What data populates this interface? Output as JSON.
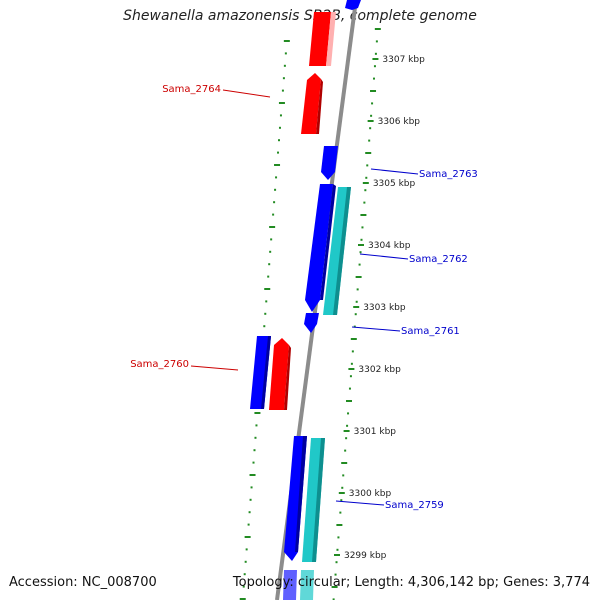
{
  "title": "Shewanella amazonensis SB2B, complete genome",
  "footer": {
    "accession": "Accession: NC_008700",
    "summary": "Topology: circular; Length: 4,306,142 bp; Genes: 3,774"
  },
  "scale_ticks": [
    {
      "label": "3307 kbp",
      "kbp": 3307
    },
    {
      "label": "3306 kbp",
      "kbp": 3306
    },
    {
      "label": "3305 kbp",
      "kbp": 3305
    },
    {
      "label": "3304 kbp",
      "kbp": 3304
    },
    {
      "label": "3303 kbp",
      "kbp": 3303
    },
    {
      "label": "3302 kbp",
      "kbp": 3302
    },
    {
      "label": "3301 kbp",
      "kbp": 3301
    },
    {
      "label": "3300 kbp",
      "kbp": 3300
    },
    {
      "label": "3299 kbp",
      "kbp": 3299
    }
  ],
  "gene_labels": [
    {
      "name": "Sama_2764",
      "side": "left",
      "color": "#cc0000"
    },
    {
      "name": "Sama_2763",
      "side": "right",
      "color": "#0000cc"
    },
    {
      "name": "Sama_2762",
      "side": "right",
      "color": "#0000cc"
    },
    {
      "name": "Sama_2761",
      "side": "right",
      "color": "#0000cc"
    },
    {
      "name": "Sama_2760",
      "side": "left",
      "color": "#cc0000"
    },
    {
      "name": "Sama_2759",
      "side": "right",
      "color": "#0000cc"
    }
  ],
  "colors": {
    "backbone": "#8c8c8c",
    "forward_cds": "#ff0000",
    "reverse_cds": "#0000ff",
    "rna": "#20c8c8",
    "dotted_ring": "#228b22"
  }
}
